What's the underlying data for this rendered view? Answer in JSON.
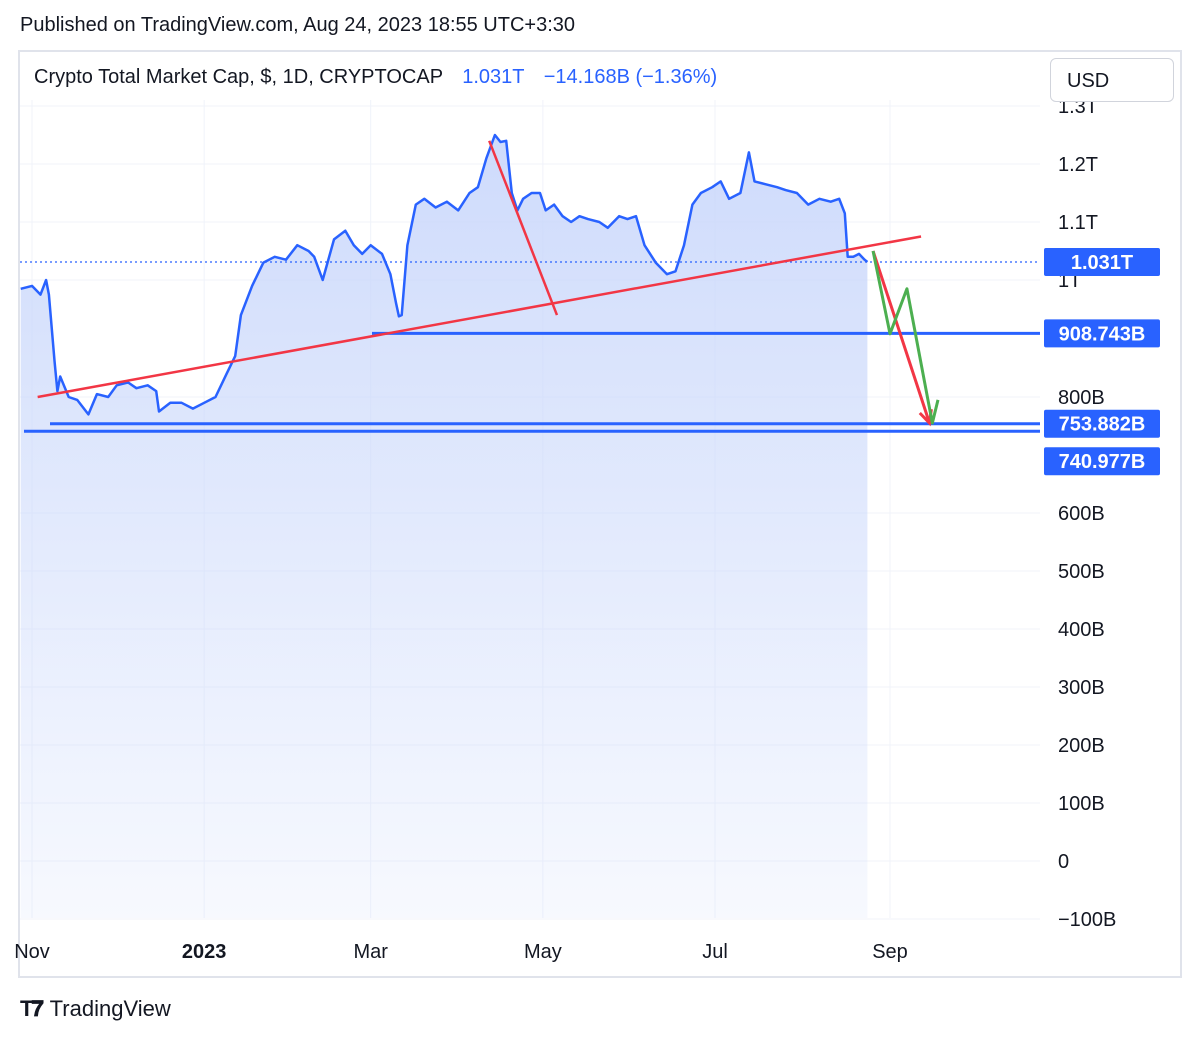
{
  "header": {
    "published": "Published on TradingView.com, Aug 24, 2023 18:55 UTC+3:30"
  },
  "legend": {
    "symbol": "Crypto Total Market Cap, $, 1D, CRYPTOCAP",
    "last": "1.031T",
    "change": "−14.168B (−1.36%)"
  },
  "toolbar": {
    "currency_label": "USD"
  },
  "footer": {
    "brand": "TradingView"
  },
  "colors": {
    "price": "#2962ff",
    "area": "#c9d7fb",
    "trend": "#f23645",
    "projection_green": "#4caf50",
    "grid": "#f0f3fa"
  },
  "chart_data": {
    "type": "area",
    "title": "Crypto Total Market Cap, $, 1D, CRYPTOCAP",
    "x_axis_ticks": [
      "Nov",
      "2023",
      "Mar",
      "May",
      "Jul",
      "Sep"
    ],
    "x_axis_tick_dates": [
      "2022-11-01",
      "2023-01-01",
      "2023-03-01",
      "2023-05-01",
      "2023-07-01",
      "2023-09-01"
    ],
    "y_axis_ticks": [
      {
        "label": "1.3T",
        "value": 1300
      },
      {
        "label": "1.2T",
        "value": 1200
      },
      {
        "label": "1.1T",
        "value": 1100
      },
      {
        "label": "1T",
        "value": 1000
      },
      {
        "label": "800B",
        "value": 800
      },
      {
        "label": "600B",
        "value": 600
      },
      {
        "label": "500B",
        "value": 500
      },
      {
        "label": "400B",
        "value": 400
      },
      {
        "label": "300B",
        "value": 300
      },
      {
        "label": "200B",
        "value": 200
      },
      {
        "label": "100B",
        "value": 100
      },
      {
        "label": "0",
        "value": 0
      },
      {
        "label": "−100B",
        "value": -100
      }
    ],
    "y_unit": "billions USD",
    "ylim": [
      -110,
      1340
    ],
    "grid": true,
    "series": [
      {
        "points": [
          [
            "2022-10-28",
            985
          ],
          [
            "2022-11-01",
            990
          ],
          [
            "2022-11-04",
            975
          ],
          [
            "2022-11-06",
            1000
          ],
          [
            "2022-11-07",
            975
          ],
          [
            "2022-11-09",
            860
          ],
          [
            "2022-11-10",
            810
          ],
          [
            "2022-11-11",
            835
          ],
          [
            "2022-11-14",
            800
          ],
          [
            "2022-11-17",
            795
          ],
          [
            "2022-11-21",
            770
          ],
          [
            "2022-11-24",
            805
          ],
          [
            "2022-11-28",
            800
          ],
          [
            "2022-12-01",
            820
          ],
          [
            "2022-12-05",
            825
          ],
          [
            "2022-12-08",
            815
          ],
          [
            "2022-12-12",
            820
          ],
          [
            "2022-12-15",
            810
          ],
          [
            "2022-12-16",
            775
          ],
          [
            "2022-12-20",
            790
          ],
          [
            "2022-12-24",
            790
          ],
          [
            "2022-12-28",
            780
          ],
          [
            "2023-01-01",
            790
          ],
          [
            "2023-01-05",
            800
          ],
          [
            "2023-01-09",
            840
          ],
          [
            "2023-01-12",
            870
          ],
          [
            "2023-01-14",
            940
          ],
          [
            "2023-01-18",
            990
          ],
          [
            "2023-01-22",
            1030
          ],
          [
            "2023-01-26",
            1040
          ],
          [
            "2023-01-30",
            1035
          ],
          [
            "2023-02-03",
            1060
          ],
          [
            "2023-02-07",
            1050
          ],
          [
            "2023-02-09",
            1040
          ],
          [
            "2023-02-12",
            1000
          ],
          [
            "2023-02-16",
            1070
          ],
          [
            "2023-02-20",
            1085
          ],
          [
            "2023-02-23",
            1060
          ],
          [
            "2023-02-26",
            1045
          ],
          [
            "2023-03-01",
            1060
          ],
          [
            "2023-03-05",
            1045
          ],
          [
            "2023-03-08",
            1010
          ],
          [
            "2023-03-10",
            960
          ],
          [
            "2023-03-11",
            938
          ],
          [
            "2023-03-12",
            940
          ],
          [
            "2023-03-14",
            1060
          ],
          [
            "2023-03-17",
            1130
          ],
          [
            "2023-03-20",
            1140
          ],
          [
            "2023-03-24",
            1125
          ],
          [
            "2023-03-28",
            1135
          ],
          [
            "2023-04-01",
            1120
          ],
          [
            "2023-04-05",
            1150
          ],
          [
            "2023-04-08",
            1160
          ],
          [
            "2023-04-11",
            1210
          ],
          [
            "2023-04-14",
            1250
          ],
          [
            "2023-04-16",
            1238
          ],
          [
            "2023-04-18",
            1240
          ],
          [
            "2023-04-20",
            1150
          ],
          [
            "2023-04-22",
            1120
          ],
          [
            "2023-04-24",
            1140
          ],
          [
            "2023-04-27",
            1150
          ],
          [
            "2023-04-30",
            1150
          ],
          [
            "2023-05-02",
            1120
          ],
          [
            "2023-05-05",
            1130
          ],
          [
            "2023-05-08",
            1110
          ],
          [
            "2023-05-11",
            1100
          ],
          [
            "2023-05-14",
            1110
          ],
          [
            "2023-05-17",
            1105
          ],
          [
            "2023-05-21",
            1100
          ],
          [
            "2023-05-24",
            1090
          ],
          [
            "2023-05-28",
            1110
          ],
          [
            "2023-05-31",
            1105
          ],
          [
            "2023-06-03",
            1110
          ],
          [
            "2023-06-06",
            1060
          ],
          [
            "2023-06-10",
            1030
          ],
          [
            "2023-06-14",
            1010
          ],
          [
            "2023-06-17",
            1015
          ],
          [
            "2023-06-20",
            1060
          ],
          [
            "2023-06-23",
            1130
          ],
          [
            "2023-06-26",
            1150
          ],
          [
            "2023-06-30",
            1160
          ],
          [
            "2023-07-03",
            1170
          ],
          [
            "2023-07-06",
            1140
          ],
          [
            "2023-07-10",
            1150
          ],
          [
            "2023-07-13",
            1220
          ],
          [
            "2023-07-15",
            1170
          ],
          [
            "2023-07-19",
            1165
          ],
          [
            "2023-07-23",
            1160
          ],
          [
            "2023-07-26",
            1155
          ],
          [
            "2023-07-30",
            1150
          ],
          [
            "2023-08-03",
            1130
          ],
          [
            "2023-08-07",
            1140
          ],
          [
            "2023-08-11",
            1135
          ],
          [
            "2023-08-14",
            1140
          ],
          [
            "2023-08-16",
            1115
          ],
          [
            "2023-08-17",
            1040
          ],
          [
            "2023-08-19",
            1040
          ],
          [
            "2023-08-21",
            1045
          ],
          [
            "2023-08-23",
            1035
          ],
          [
            "2023-08-24",
            1031
          ]
        ]
      }
    ],
    "horizontal_levels": [
      {
        "label": "908.743B",
        "value": 908.743
      },
      {
        "label": "753.882B",
        "value": 753.882
      },
      {
        "label": "740.977B",
        "value": 740.977
      }
    ],
    "current_price": {
      "label": "1.031T",
      "value": 1031
    },
    "annotations": [
      {
        "kind": "trendline",
        "color": "red",
        "from": [
          "2022-11-03",
          800
        ],
        "to": [
          "2023-09-12",
          1075
        ]
      },
      {
        "kind": "trendline",
        "color": "red",
        "from": [
          "2023-04-12",
          1240
        ],
        "to": [
          "2023-05-06",
          940
        ]
      },
      {
        "kind": "arrow",
        "color": "red",
        "points": [
          [
            "2023-08-26",
            1050
          ],
          [
            "2023-09-15",
            755
          ]
        ]
      },
      {
        "kind": "arrow",
        "color": "green",
        "points": [
          [
            "2023-08-26",
            1050
          ],
          [
            "2023-09-01",
            908
          ],
          [
            "2023-09-07",
            985
          ],
          [
            "2023-09-16",
            755
          ],
          [
            "2023-09-18",
            795
          ]
        ]
      }
    ]
  }
}
